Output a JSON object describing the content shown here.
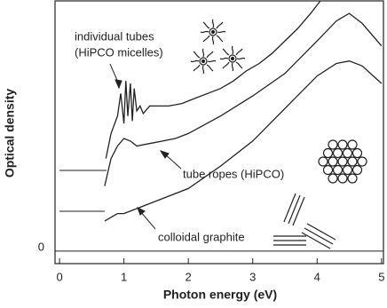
{
  "chart_data": {
    "type": "line",
    "x_label": "Photon energy (eV)",
    "y_label": "Optical density",
    "xlim": [
      -0.07,
      5.03
    ],
    "ylim": [
      -0.05,
      1.0
    ],
    "xticks": [
      0,
      1,
      2,
      3,
      4,
      5
    ],
    "yticks": [
      0
    ],
    "series": [
      {
        "color": "#222222",
        "x": [
          0.72,
          0.8,
          0.9,
          0.95,
          1.0,
          1.03,
          1.06,
          1.1,
          1.13,
          1.16,
          1.2,
          1.25,
          1.3,
          1.4,
          1.5,
          1.7,
          1.9,
          2.1,
          2.3,
          2.5,
          2.7,
          2.9,
          3.1,
          3.3,
          3.5,
          3.7,
          3.9,
          4.05
        ],
        "values": [
          0.37,
          0.47,
          0.54,
          0.63,
          0.51,
          0.68,
          0.54,
          0.67,
          0.52,
          0.65,
          0.56,
          0.58,
          0.55,
          0.58,
          0.58,
          0.58,
          0.59,
          0.61,
          0.63,
          0.65,
          0.68,
          0.72,
          0.75,
          0.79,
          0.84,
          0.89,
          0.95,
          1.0
        ]
      },
      {
        "color": "#222222",
        "x": [
          0.7,
          0.8,
          0.9,
          1.0,
          1.1,
          1.2,
          1.4,
          1.6,
          1.8,
          2.0,
          2.5,
          3.0,
          3.5,
          4.0,
          4.3,
          4.5,
          4.7,
          5.0
        ],
        "values": [
          0.26,
          0.37,
          0.42,
          0.45,
          0.44,
          0.42,
          0.43,
          0.44,
          0.45,
          0.47,
          0.54,
          0.62,
          0.71,
          0.84,
          0.92,
          0.95,
          0.91,
          0.82
        ]
      },
      {
        "color": "#222222",
        "x": [
          0.7,
          0.9,
          1.0,
          1.2,
          1.5,
          2.0,
          2.5,
          3.0,
          3.5,
          4.0,
          4.3,
          4.5,
          4.7,
          5.0
        ],
        "values": [
          0.12,
          0.15,
          0.15,
          0.17,
          0.2,
          0.25,
          0.34,
          0.44,
          0.57,
          0.7,
          0.75,
          0.76,
          0.74,
          0.67
        ]
      }
    ],
    "annotations": [
      "individual tubes",
      "(HiPCO micelles)",
      "tube ropes (HiPCO)",
      "colloidal graphite"
    ]
  }
}
